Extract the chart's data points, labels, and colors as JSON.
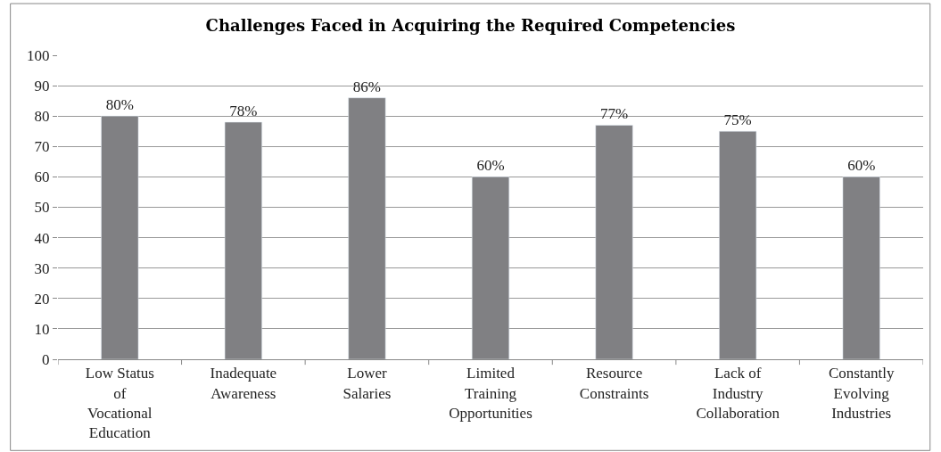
{
  "chart_data": {
    "type": "bar",
    "title": "Challenges Faced in Acquiring the Required Competencies",
    "categories": [
      "Low Status of Vocational Education",
      "Inadequate Awareness",
      "Lower Salaries",
      "Limited Training Opportunities",
      "Resource Constraints",
      "Lack of Industry Collaboration",
      "Constantly Evolving Industries"
    ],
    "values": [
      80,
      78,
      86,
      60,
      77,
      75,
      60
    ],
    "value_labels": [
      "80%",
      "78%",
      "86%",
      "60%",
      "77%",
      "75%",
      "60%"
    ],
    "color": "#808083",
    "ylim": [
      0,
      100
    ],
    "yticks": [
      0,
      10,
      20,
      30,
      40,
      50,
      60,
      70,
      80,
      90,
      100
    ],
    "grid": "y",
    "legend": false
  }
}
